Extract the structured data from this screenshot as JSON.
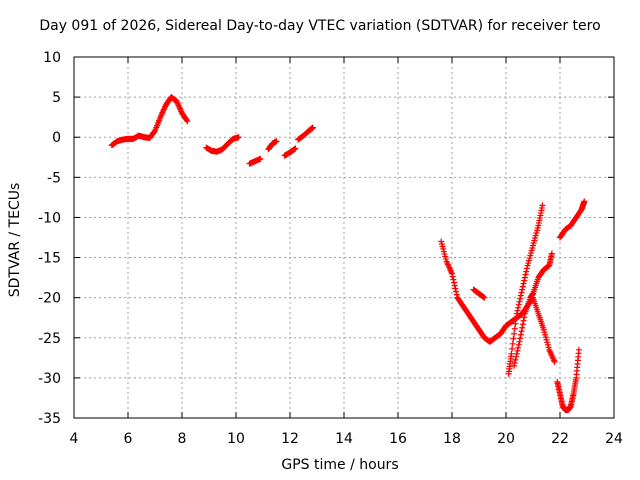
{
  "chart_data": {
    "type": "scatter",
    "title": "Day 091 of 2026, Sidereal Day-to-day VTEC variation (SDTVAR) for receiver tero",
    "xlabel": "GPS time / hours",
    "ylabel": "SDTVAR / TECUs",
    "xlim": [
      4,
      24
    ],
    "ylim": [
      -35,
      10
    ],
    "xticks": [
      4,
      6,
      8,
      10,
      12,
      14,
      16,
      18,
      20,
      22,
      24
    ],
    "yticks": [
      10,
      5,
      0,
      -5,
      -10,
      -15,
      -20,
      -25,
      -30,
      -35
    ],
    "grid": true,
    "marker": "+",
    "color": "#ff0000",
    "series": [
      {
        "name": "seg1",
        "x": [
          5.4,
          5.6,
          5.8,
          6.0,
          6.2,
          6.4,
          6.6,
          6.8,
          7.0,
          7.2,
          7.4,
          7.6,
          7.8,
          8.0,
          8.2
        ],
        "y": [
          -1.0,
          -0.5,
          -0.3,
          -0.2,
          -0.2,
          0.2,
          0.0,
          -0.1,
          0.8,
          2.5,
          4.0,
          5.0,
          4.5,
          3.0,
          2.0
        ]
      },
      {
        "name": "seg2",
        "x": [
          8.9,
          9.1,
          9.3,
          9.5,
          9.7,
          9.9,
          10.1
        ],
        "y": [
          -1.3,
          -1.7,
          -1.8,
          -1.5,
          -0.8,
          -0.2,
          0.0
        ]
      },
      {
        "name": "seg3",
        "x": [
          10.5,
          10.7,
          10.9
        ],
        "y": [
          -3.3,
          -3.0,
          -2.7
        ]
      },
      {
        "name": "seg4",
        "x": [
          11.2,
          11.35,
          11.5
        ],
        "y": [
          -1.5,
          -0.8,
          -0.5
        ]
      },
      {
        "name": "seg5",
        "x": [
          11.8,
          12.0,
          12.2
        ],
        "y": [
          -2.3,
          -1.9,
          -1.4
        ]
      },
      {
        "name": "seg6",
        "x": [
          12.3,
          12.5,
          12.7,
          12.85
        ],
        "y": [
          -0.3,
          0.2,
          0.8,
          1.2
        ]
      },
      {
        "name": "seg7",
        "x": [
          17.6,
          17.8,
          18.0,
          18.2,
          18.4,
          18.6,
          18.8,
          19.0,
          19.2,
          19.4,
          19.6,
          19.8,
          20.0,
          20.2,
          20.4,
          20.6,
          20.8,
          21.0,
          21.2,
          21.4,
          21.6,
          21.8
        ],
        "y": [
          -13.0,
          -15.5,
          -17.0,
          -20.0,
          -21.0,
          -22.0,
          -23.0,
          -24.0,
          -25.0,
          -25.5,
          -25.0,
          -24.5,
          -23.5,
          -23.0,
          -22.5,
          -22.0,
          -21.0,
          -20.0,
          -22.0,
          -24.0,
          -26.5,
          -28.0
        ]
      },
      {
        "name": "seg8",
        "x": [
          18.8,
          19.0,
          19.2
        ],
        "y": [
          -19.0,
          -19.5,
          -20.0
        ]
      },
      {
        "name": "seg9",
        "x": [
          20.1,
          20.2,
          20.4,
          20.6,
          20.8,
          21.0,
          21.2,
          21.35
        ],
        "y": [
          -29.5,
          -27.0,
          -22.0,
          -19.0,
          -16.0,
          -13.5,
          -11.0,
          -8.5
        ]
      },
      {
        "name": "seg10",
        "x": [
          20.3,
          20.5,
          20.7,
          20.9,
          21.0,
          21.2,
          21.4,
          21.6,
          21.7
        ],
        "y": [
          -28.5,
          -25.5,
          -22.0,
          -20.0,
          -19.5,
          -17.5,
          -16.5,
          -16.0,
          -14.5
        ]
      },
      {
        "name": "seg11",
        "x": [
          22.0,
          22.2,
          22.4,
          22.6,
          22.8,
          22.9
        ],
        "y": [
          -12.5,
          -11.5,
          -11.0,
          -10.0,
          -9.0,
          -8.0
        ]
      },
      {
        "name": "seg12",
        "x": [
          21.9,
          22.0,
          22.1,
          22.2,
          22.3,
          22.4,
          22.5,
          22.6,
          22.7
        ],
        "y": [
          -30.5,
          -32.0,
          -33.5,
          -34.0,
          -34.0,
          -33.5,
          -32.0,
          -30.0,
          -26.5
        ]
      }
    ]
  }
}
